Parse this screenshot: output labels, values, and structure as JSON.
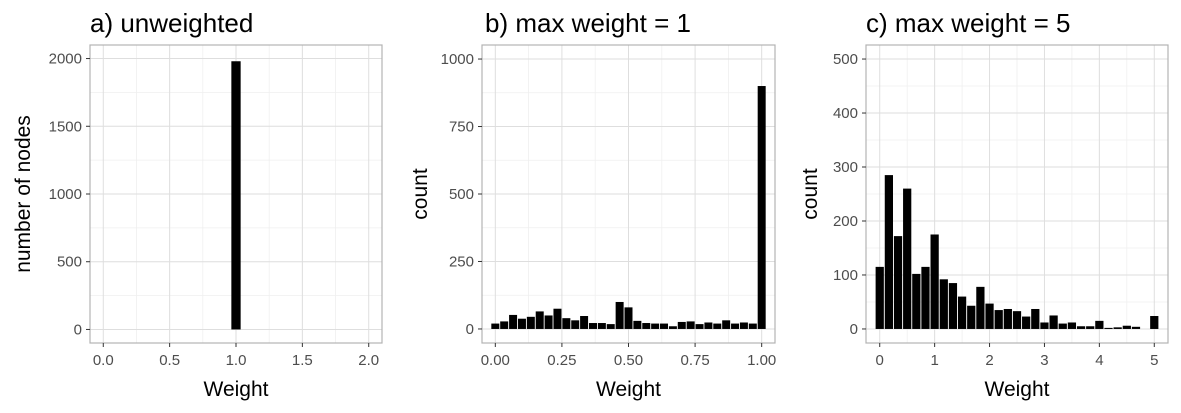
{
  "chart_data": [
    {
      "type": "bar",
      "title": "a) unweighted",
      "xlabel": "Weight",
      "ylabel": "number of nodes",
      "xlim": [
        -0.1,
        2.1
      ],
      "ylim": [
        -100,
        2100
      ],
      "xticks": [
        0.0,
        0.5,
        1.0,
        1.5,
        2.0
      ],
      "xtick_labels": [
        "0.0",
        "0.5",
        "1.0",
        "1.5",
        "2.0"
      ],
      "yticks": [
        0,
        500,
        1000,
        1500,
        2000
      ],
      "ytick_labels": [
        "0",
        "500",
        "1000",
        "1500",
        "2000"
      ],
      "bar_width": 0.07,
      "x": [
        1.0
      ],
      "values": [
        1980
      ],
      "bar_color": "#000000",
      "grid": true
    },
    {
      "type": "bar",
      "title": "b) max weight = 1",
      "xlabel": "Weight",
      "ylabel": "count",
      "xlim": [
        -0.05,
        1.05
      ],
      "ylim": [
        -52,
        1052
      ],
      "xticks": [
        0.0,
        0.25,
        0.5,
        0.75,
        1.0
      ],
      "xtick_labels": [
        "0.00",
        "0.25",
        "0.50",
        "0.75",
        "1.00"
      ],
      "yticks": [
        0,
        250,
        500,
        750,
        1000
      ],
      "ytick_labels": [
        "0",
        "250",
        "500",
        "750",
        "1000"
      ],
      "bar_width": 0.03,
      "x": [
        0.0,
        0.0333,
        0.0667,
        0.1,
        0.1333,
        0.1667,
        0.2,
        0.2333,
        0.2667,
        0.3,
        0.3333,
        0.3667,
        0.4,
        0.4333,
        0.4667,
        0.5,
        0.5333,
        0.5667,
        0.6,
        0.6333,
        0.6667,
        0.7,
        0.7333,
        0.7667,
        0.8,
        0.8333,
        0.8667,
        0.9,
        0.9333,
        0.9667,
        1.0
      ],
      "values": [
        20,
        28,
        52,
        38,
        45,
        65,
        50,
        75,
        40,
        32,
        48,
        22,
        22,
        18,
        100,
        80,
        30,
        22,
        20,
        20,
        10,
        26,
        28,
        18,
        24,
        20,
        32,
        20,
        24,
        20,
        900
      ],
      "bar_color": "#000000",
      "grid": true
    },
    {
      "type": "bar",
      "title": "c) max weight = 5",
      "xlabel": "Weight",
      "ylabel": "count",
      "xlim": [
        -0.25,
        5.25
      ],
      "ylim": [
        -26,
        526
      ],
      "xticks": [
        0,
        1,
        2,
        3,
        4,
        5
      ],
      "xtick_labels": [
        "0",
        "1",
        "2",
        "3",
        "4",
        "5"
      ],
      "yticks": [
        0,
        100,
        200,
        300,
        400,
        500
      ],
      "ytick_labels": [
        "0",
        "100",
        "200",
        "300",
        "400",
        "500"
      ],
      "bar_width": 0.15,
      "x": [
        0.0,
        0.1667,
        0.3333,
        0.5,
        0.6667,
        0.8333,
        1.0,
        1.1667,
        1.3333,
        1.5,
        1.6667,
        1.8333,
        2.0,
        2.1667,
        2.3333,
        2.5,
        2.6667,
        2.8333,
        3.0,
        3.1667,
        3.3333,
        3.5,
        3.6667,
        3.8333,
        4.0,
        4.1667,
        4.3333,
        4.5,
        4.6667,
        5.0
      ],
      "values": [
        115,
        285,
        172,
        260,
        102,
        115,
        175,
        92,
        85,
        60,
        43,
        78,
        47,
        35,
        37,
        33,
        23,
        37,
        12,
        25,
        10,
        12,
        5,
        5,
        15,
        2,
        3,
        6,
        4,
        24
      ],
      "bar_color": "#000000",
      "grid": true
    }
  ]
}
